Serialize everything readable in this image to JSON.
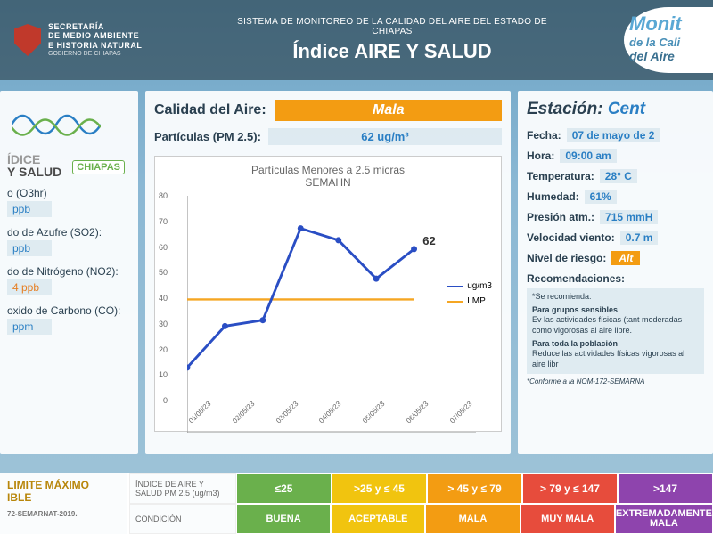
{
  "header": {
    "secretaria_l1": "SECRETARÍA",
    "secretaria_l2": "DE MEDIO AMBIENTE",
    "secretaria_l3": "E HISTORIA NATURAL",
    "secretaria_l4": "GOBIERNO DE CHIAPAS",
    "sistema": "SISTEMA DE MONITOREO DE LA CALIDAD DEL AIRE DEL ESTADO DE CHIAPAS",
    "title": "Índice AIRE Y SALUD",
    "monitor_l1": "Monit",
    "monitor_l2": "de la Cali",
    "monitor_l3": "del Aire"
  },
  "left": {
    "indice_l1": "ÍDICE",
    "indice_l2": "Y SALUD",
    "chiapas": "CHIAPAS",
    "pollutants": [
      {
        "label": "o (O3hr)",
        "value": "ppb",
        "color": "#2a7fc4"
      },
      {
        "label": "do de Azufre (SO2):",
        "value": "ppb",
        "color": "#2a7fc4"
      },
      {
        "label": "do de Nitrógeno (NO2):",
        "value": "4 ppb",
        "color": "#e67e22"
      },
      {
        "label": "oxido de Carbono (CO):",
        "value": "ppm",
        "color": "#2a7fc4"
      }
    ]
  },
  "center": {
    "calidad_label": "Calidad del Aire:",
    "calidad_value": "Mala",
    "calidad_bg": "#f39c12",
    "particulas_label": "Partículas (PM 2.5):",
    "particulas_value": "62 ug/m³",
    "chart": {
      "title1": "Partículas Menores a 2.5 micras",
      "title2": "SEMAHN",
      "y_ticks": [
        0,
        10,
        20,
        30,
        40,
        50,
        60,
        70,
        80
      ],
      "ylim": [
        0,
        80
      ],
      "x_labels": [
        "01/05/23",
        "02/05/23",
        "03/05/23",
        "04/05/23",
        "05/05/23",
        "06/05/23",
        "07/05/23"
      ],
      "series_values": [
        22,
        36,
        38,
        69,
        65,
        52,
        62
      ],
      "series_color": "#2a4ec4",
      "lmp_value": 45,
      "lmp_color": "#f5a623",
      "callout": "62",
      "legend_series": "ug/m3",
      "legend_lmp": "LMP"
    }
  },
  "right": {
    "estacion_head": "Estación:",
    "estacion_value": "Cent",
    "rows": [
      {
        "label": "Fecha:",
        "value": "07 de mayo de 2"
      },
      {
        "label": "Hora:",
        "value": "09:00 am"
      },
      {
        "label": "Temperatura:",
        "value": "28° C"
      },
      {
        "label": "Humedad:",
        "value": "61%"
      },
      {
        "label": "Presión atm.:",
        "value": "715 mmH"
      },
      {
        "label": "Velocidad viento:",
        "value": "0.7 m"
      }
    ],
    "nivel_label": "Nivel de riesgo:",
    "nivel_value": "Alt",
    "recom_head": "Recomendaciones:",
    "recom_intro": "*Se recomienda:",
    "recom_b1": "Para grupos sensibles",
    "recom_t1": "Ev las actividades físicas (tant moderadas como vigorosas al aire libre.",
    "recom_b2": "Para toda la población",
    "recom_t2": "Reduce las actividades físicas vigorosas al aire libr",
    "footnote": "*Conforme a la NOM-172-SEMARNA"
  },
  "footer": {
    "lmp_l1": "LIMITE MÁXIMO",
    "lmp_l2": "IBLE",
    "lmp_sub": "72-SEMARNAT-2019.",
    "scale_head1": "ÍNDICE DE AIRE Y SALUD PM 2.5 (ug/m3)",
    "scale_head2": "CONDICIÓN",
    "ranges": [
      {
        "range": "≤25",
        "label": "BUENA",
        "color": "#6ab04c"
      },
      {
        "range": ">25 y ≤ 45",
        "label": "ACEPTABLE",
        "color": "#f1c40f"
      },
      {
        "range": "> 45 y ≤ 79",
        "label": "MALA",
        "color": "#f39c12"
      },
      {
        "range": "> 79 y ≤ 147",
        "label": "MUY MALA",
        "color": "#e74c3c"
      },
      {
        "range": ">147",
        "label": "EXTREMADAMENTE MALA",
        "color": "#8e44ad"
      }
    ]
  }
}
